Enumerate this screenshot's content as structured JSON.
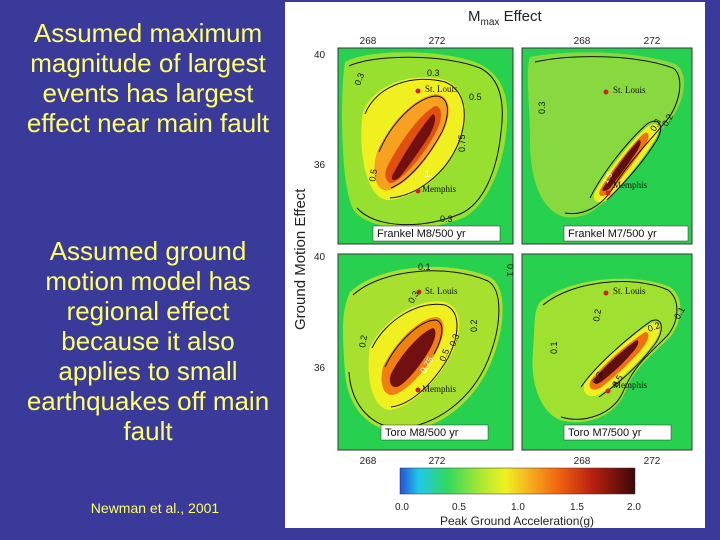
{
  "left_panel": {
    "statement_1": "Assumed maximum magnitude of largest events has largest effect near main fault",
    "statement_2": "Assumed ground motion model has regional effect because it also applies to small earthquakes off main fault",
    "citation": "Newman et al., 2001"
  },
  "figure": {
    "title_main": "M",
    "title_sub": "max",
    "title_rest": " Effect",
    "side_label": "Ground Motion Effect",
    "city_top": "St. Louis",
    "city_bottom": "Memphis",
    "lon_ticks": [
      "268",
      "272",
      "268",
      "272"
    ],
    "lat_ticks": [
      "40",
      "36",
      "40",
      "36"
    ],
    "panels": [
      {
        "label": "Frankel M8/500 yr",
        "contours": [
          "0.3",
          "0.3",
          "0.5",
          "0.75",
          "0.5",
          "0.3",
          "1"
        ]
      },
      {
        "label": "Frankel M7/500 yr",
        "contours": [
          "0.3",
          "0.2",
          "0.3",
          "1.5"
        ]
      },
      {
        "label": "Toro M8/500 yr",
        "contours": [
          "0.1",
          "0.1",
          "0.3",
          "0.2",
          "0.2",
          "0.3",
          "0.5",
          "0.75"
        ]
      },
      {
        "label": "Toro M7/500 yr",
        "contours": [
          "0.2",
          "0.1",
          "0.2",
          "0.1",
          "0.3",
          "0.5"
        ]
      }
    ],
    "colorbar": {
      "ticks": [
        "0.0",
        "0.5",
        "1.0",
        "1.5",
        "2.0"
      ],
      "label": "Peak Ground Acceleration(g)"
    }
  },
  "colors": {
    "background": "#3a3a9a",
    "text": "#ffff66"
  }
}
